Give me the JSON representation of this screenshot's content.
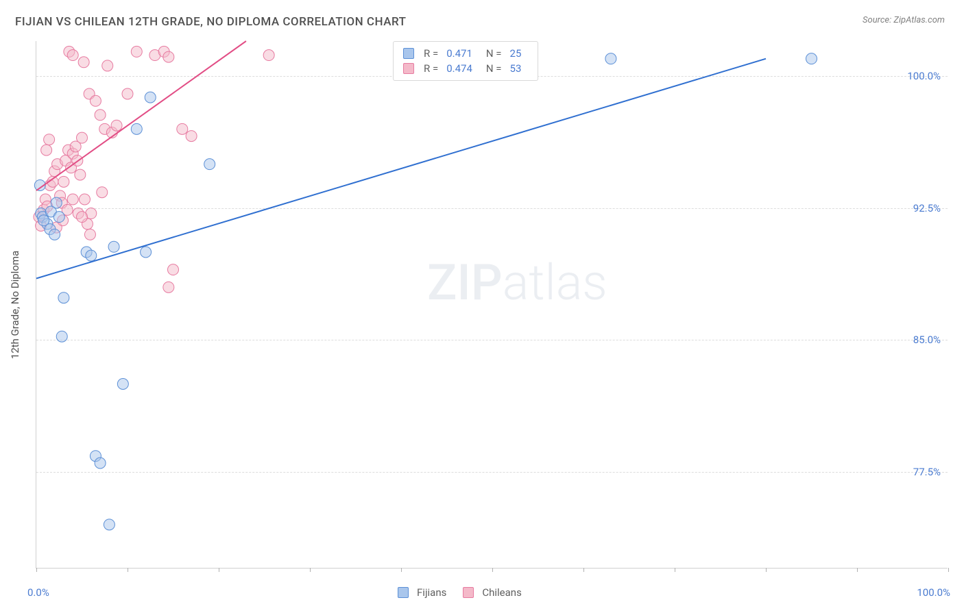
{
  "title": "FIJIAN VS CHILEAN 12TH GRADE, NO DIPLOMA CORRELATION CHART",
  "source": "Source: ZipAtlas.com",
  "y_axis_label": "12th Grade, No Diploma",
  "watermark_zip": "ZIP",
  "watermark_atlas": "atlas",
  "chart": {
    "type": "scatter",
    "xlim": [
      0,
      100
    ],
    "ylim": [
      72,
      102
    ],
    "x_tick_positions": [
      0,
      10,
      20,
      30,
      40,
      50,
      60,
      70,
      80,
      90,
      100
    ],
    "x_tick_labels": {
      "0": "0.0%",
      "100": "100.0%"
    },
    "y_gridlines": [
      77.5,
      85.0,
      92.5,
      100.0
    ],
    "y_tick_labels": [
      "77.5%",
      "85.0%",
      "92.5%",
      "100.0%"
    ],
    "background_color": "#ffffff",
    "grid_color": "#dcdcdc",
    "axis_color": "#d0d0d0",
    "tick_font_color": "#4a7bd0",
    "marker_radius": 8,
    "marker_opacity": 0.5,
    "line_width": 2,
    "series": [
      {
        "name": "Fijians",
        "color_fill": "#a9c6ec",
        "color_stroke": "#5b8fd6",
        "line_color": "#2f6fd0",
        "R": "0.471",
        "N": "25",
        "trend": {
          "x1": 0,
          "y1": 88.5,
          "x2": 80,
          "y2": 101.0
        },
        "points": [
          {
            "x": 0.5,
            "y": 92.2
          },
          {
            "x": 0.7,
            "y": 92.0
          },
          {
            "x": 1.2,
            "y": 91.6
          },
          {
            "x": 1.5,
            "y": 91.3
          },
          {
            "x": 2.0,
            "y": 91.0
          },
          {
            "x": 2.2,
            "y": 92.8
          },
          {
            "x": 0.4,
            "y": 93.8
          },
          {
            "x": 0.8,
            "y": 91.8
          },
          {
            "x": 1.6,
            "y": 92.3
          },
          {
            "x": 2.5,
            "y": 92.0
          },
          {
            "x": 5.5,
            "y": 90.0
          },
          {
            "x": 12.5,
            "y": 98.8
          },
          {
            "x": 2.8,
            "y": 85.2
          },
          {
            "x": 6.0,
            "y": 89.8
          },
          {
            "x": 8.5,
            "y": 90.3
          },
          {
            "x": 3.0,
            "y": 87.4
          },
          {
            "x": 9.5,
            "y": 82.5
          },
          {
            "x": 19.0,
            "y": 95.0
          },
          {
            "x": 6.5,
            "y": 78.4
          },
          {
            "x": 7.0,
            "y": 78.0
          },
          {
            "x": 8.0,
            "y": 74.5
          },
          {
            "x": 12.0,
            "y": 90.0
          },
          {
            "x": 11.0,
            "y": 97.0
          },
          {
            "x": 63.0,
            "y": 101.0
          },
          {
            "x": 85.0,
            "y": 101.0
          }
        ]
      },
      {
        "name": "Chileans",
        "color_fill": "#f4b9c9",
        "color_stroke": "#e77aa0",
        "line_color": "#e24d85",
        "R": "0.474",
        "N": "53",
        "trend": {
          "x1": 0,
          "y1": 93.5,
          "x2": 23,
          "y2": 102.0
        },
        "points": [
          {
            "x": 0.3,
            "y": 92.0
          },
          {
            "x": 0.5,
            "y": 91.5
          },
          {
            "x": 0.8,
            "y": 92.4
          },
          {
            "x": 1.0,
            "y": 93.0
          },
          {
            "x": 1.2,
            "y": 92.6
          },
          {
            "x": 1.5,
            "y": 93.8
          },
          {
            "x": 1.8,
            "y": 94.0
          },
          {
            "x": 2.0,
            "y": 94.6
          },
          {
            "x": 2.3,
            "y": 95.0
          },
          {
            "x": 2.6,
            "y": 93.2
          },
          {
            "x": 2.8,
            "y": 92.8
          },
          {
            "x": 3.0,
            "y": 94.0
          },
          {
            "x": 3.2,
            "y": 95.2
          },
          {
            "x": 3.5,
            "y": 95.8
          },
          {
            "x": 3.8,
            "y": 94.8
          },
          {
            "x": 4.0,
            "y": 95.6
          },
          {
            "x": 4.3,
            "y": 96.0
          },
          {
            "x": 4.5,
            "y": 95.2
          },
          {
            "x": 4.8,
            "y": 94.4
          },
          {
            "x": 5.0,
            "y": 96.5
          },
          {
            "x": 2.2,
            "y": 91.4
          },
          {
            "x": 2.9,
            "y": 91.8
          },
          {
            "x": 3.4,
            "y": 92.4
          },
          {
            "x": 5.3,
            "y": 93.0
          },
          {
            "x": 5.6,
            "y": 91.6
          },
          {
            "x": 5.9,
            "y": 91.0
          },
          {
            "x": 1.1,
            "y": 95.8
          },
          {
            "x": 1.4,
            "y": 96.4
          },
          {
            "x": 4.0,
            "y": 93.0
          },
          {
            "x": 4.6,
            "y": 92.2
          },
          {
            "x": 3.6,
            "y": 101.4
          },
          {
            "x": 4.0,
            "y": 101.2
          },
          {
            "x": 5.2,
            "y": 100.8
          },
          {
            "x": 5.8,
            "y": 99.0
          },
          {
            "x": 6.5,
            "y": 98.6
          },
          {
            "x": 7.0,
            "y": 97.8
          },
          {
            "x": 7.5,
            "y": 97.0
          },
          {
            "x": 7.8,
            "y": 100.6
          },
          {
            "x": 8.3,
            "y": 96.8
          },
          {
            "x": 8.8,
            "y": 97.2
          },
          {
            "x": 11.0,
            "y": 101.4
          },
          {
            "x": 13.0,
            "y": 101.2
          },
          {
            "x": 14.0,
            "y": 101.4
          },
          {
            "x": 14.5,
            "y": 101.1
          },
          {
            "x": 16.0,
            "y": 97.0
          },
          {
            "x": 17.0,
            "y": 96.6
          },
          {
            "x": 25.5,
            "y": 101.2
          },
          {
            "x": 10.0,
            "y": 99.0
          },
          {
            "x": 6.0,
            "y": 92.2
          },
          {
            "x": 7.2,
            "y": 93.4
          },
          {
            "x": 14.5,
            "y": 88.0
          },
          {
            "x": 15.0,
            "y": 89.0
          },
          {
            "x": 5.0,
            "y": 92.0
          }
        ]
      }
    ]
  },
  "legend_top": {
    "r_label": "R =",
    "n_label": "N ="
  },
  "legend_bottom": {
    "items": [
      "Fijians",
      "Chileans"
    ]
  }
}
